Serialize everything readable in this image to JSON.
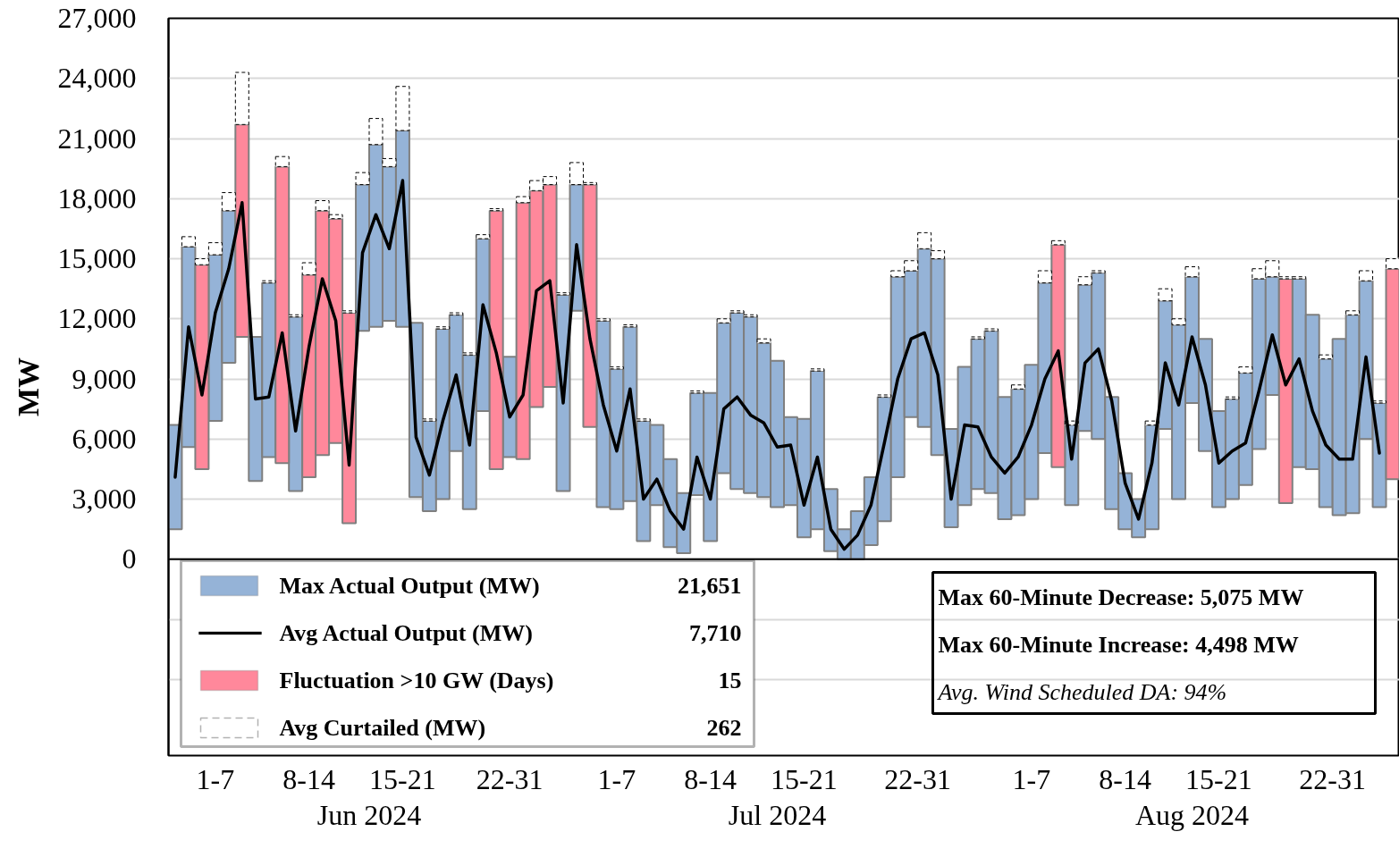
{
  "chart_data": {
    "type": "bar",
    "ylabel": "MW",
    "x": [
      "2024-06-01",
      "2024-06-02",
      "2024-06-03",
      "2024-06-04",
      "2024-06-05",
      "2024-06-06",
      "2024-06-07",
      "2024-06-08",
      "2024-06-09",
      "2024-06-10",
      "2024-06-11",
      "2024-06-12",
      "2024-06-13",
      "2024-06-14",
      "2024-06-15",
      "2024-06-16",
      "2024-06-17",
      "2024-06-18",
      "2024-06-19",
      "2024-06-20",
      "2024-06-21",
      "2024-06-22",
      "2024-06-23",
      "2024-06-24",
      "2024-06-25",
      "2024-06-26",
      "2024-06-27",
      "2024-06-28",
      "2024-06-29",
      "2024-06-30",
      "2024-07-01",
      "2024-07-02",
      "2024-07-03",
      "2024-07-04",
      "2024-07-05",
      "2024-07-06",
      "2024-07-07",
      "2024-07-08",
      "2024-07-09",
      "2024-07-10",
      "2024-07-11",
      "2024-07-12",
      "2024-07-13",
      "2024-07-14",
      "2024-07-15",
      "2024-07-16",
      "2024-07-17",
      "2024-07-18",
      "2024-07-19",
      "2024-07-20",
      "2024-07-21",
      "2024-07-22",
      "2024-07-23",
      "2024-07-24",
      "2024-07-25",
      "2024-07-26",
      "2024-07-27",
      "2024-07-28",
      "2024-07-29",
      "2024-07-30",
      "2024-07-31",
      "2024-08-01",
      "2024-08-02",
      "2024-08-03",
      "2024-08-04",
      "2024-08-05",
      "2024-08-06",
      "2024-08-07",
      "2024-08-08",
      "2024-08-09",
      "2024-08-10",
      "2024-08-11",
      "2024-08-12",
      "2024-08-13",
      "2024-08-14",
      "2024-08-15",
      "2024-08-16",
      "2024-08-17",
      "2024-08-18",
      "2024-08-19",
      "2024-08-20",
      "2024-08-21",
      "2024-08-22",
      "2024-08-23",
      "2024-08-24",
      "2024-08-25",
      "2024-08-26",
      "2024-08-27",
      "2024-08-28",
      "2024-08-29",
      "2024-08-30",
      "2024-08-31"
    ],
    "xlim": [
      "2024-05-31T12:00",
      "2024-08-31T12:00"
    ],
    "xticks": [
      {
        "value": "2024-06-04",
        "label": "1-7"
      },
      {
        "value": "2024-06-11",
        "label": "8-14"
      },
      {
        "value": "2024-06-18",
        "label": "15-21"
      },
      {
        "value": "2024-06-26",
        "label": "22-31"
      },
      {
        "value": "2024-07-04",
        "label": "1-7"
      },
      {
        "value": "2024-07-11",
        "label": "8-14"
      },
      {
        "value": "2024-07-18",
        "label": "15-21"
      },
      {
        "value": "2024-07-26T12:00",
        "label": "22-31"
      },
      {
        "value": "2024-08-04",
        "label": "1-7"
      },
      {
        "value": "2024-08-11",
        "label": "8-14"
      },
      {
        "value": "2024-08-18",
        "label": "15-21"
      },
      {
        "value": "2024-08-26T12:00",
        "label": "22-31"
      }
    ],
    "ylim": [
      -9800,
      27000
    ],
    "yticks": [
      {
        "value": -6000,
        "label": null
      },
      {
        "value": -3000,
        "label": null
      },
      0,
      {
        "value": 3000,
        "label": "3,000"
      },
      {
        "value": 6000,
        "label": "6,000"
      },
      {
        "value": 9000,
        "label": "9,000"
      },
      {
        "value": 12000,
        "label": "12,000"
      },
      {
        "value": 15000,
        "label": "15,000"
      },
      {
        "value": 18000,
        "label": "18,000"
      },
      {
        "value": 21000,
        "label": "21,000"
      },
      {
        "value": 24000,
        "label": "24,000"
      },
      {
        "value": 27000,
        "label": "27,000"
      }
    ],
    "grid": "y",
    "legend": "bottom left",
    "ref_lines": [
      {
        "axis": "y",
        "value": 0,
        "color": "#000000"
      }
    ],
    "series": [
      {
        "name": "Max Actual Output (MW)",
        "color": "#95b3d7",
        "base": [
          1500,
          5600,
          null,
          6900,
          9800,
          null,
          3900,
          5100,
          null,
          3400,
          null,
          null,
          null,
          null,
          11400,
          11600,
          11900,
          11600,
          3100,
          2400,
          3000,
          5400,
          2500,
          7400,
          null,
          5100,
          null,
          null,
          null,
          3400,
          12400,
          null,
          2600,
          2500,
          2900,
          900,
          2700,
          600,
          300,
          3200,
          900,
          4300,
          3500,
          3300,
          3100,
          2600,
          2700,
          1100,
          1500,
          400,
          0,
          0,
          700,
          1900,
          4100,
          7100,
          6600,
          5200,
          1600,
          2700,
          3500,
          3300,
          2000,
          2200,
          3000,
          5300,
          null,
          2700,
          6400,
          6000,
          2500,
          1500,
          1100,
          1500,
          6500,
          3000,
          7800,
          5400,
          2600,
          3000,
          3700,
          5500,
          8200,
          null,
          4600,
          4500,
          2600,
          2200,
          2300,
          6000,
          2600,
          null
        ],
        "values": [
          5200,
          10000,
          null,
          8300,
          7600,
          null,
          7200,
          8700,
          null,
          8700,
          null,
          null,
          null,
          null,
          7300,
          9100,
          7700,
          9800,
          8700,
          4500,
          8500,
          6800,
          7700,
          8600,
          null,
          5000,
          null,
          null,
          null,
          9800,
          6300,
          null,
          9300,
          7000,
          8700,
          6000,
          4000,
          4400,
          3000,
          5100,
          7400,
          7500,
          8800,
          8800,
          7700,
          7300,
          4400,
          5900,
          7900,
          3100,
          1500,
          2400,
          3400,
          6200,
          10000,
          7300,
          8900,
          9800,
          4900,
          6900,
          7500,
          8100,
          6100,
          6300,
          6700,
          8500,
          null,
          4000,
          7300,
          8300,
          5600,
          2800,
          1900,
          5200,
          6400,
          8700,
          6300,
          5600,
          4800,
          5000,
          5600,
          8500,
          5900,
          null,
          9400,
          7700,
          7400,
          8800,
          9900,
          7900,
          5200,
          null
        ]
      },
      {
        "name": "Avg Actual Output (MW)",
        "type": "line",
        "color": "#000000",
        "values": [
          4100,
          11600,
          8200,
          12300,
          14500,
          17800,
          8000,
          8100,
          11300,
          6400,
          10600,
          14000,
          11900,
          4700,
          15300,
          17200,
          15500,
          18900,
          6100,
          4200,
          6900,
          9200,
          5700,
          12700,
          10300,
          7100,
          8200,
          13400,
          13900,
          7800,
          15700,
          11000,
          7700,
          5400,
          8500,
          3000,
          4000,
          2400,
          1500,
          5100,
          3000,
          7500,
          8100,
          7200,
          6800,
          5600,
          5700,
          2700,
          5100,
          1500,
          500,
          1200,
          2700,
          5800,
          9000,
          11000,
          11300,
          9200,
          3000,
          6700,
          6600,
          5100,
          4300,
          5100,
          6700,
          9000,
          10400,
          5000,
          9800,
          10500,
          7900,
          3800,
          2000,
          4800,
          9800,
          7700,
          11100,
          8700,
          4800,
          5400,
          5800,
          8400,
          11200,
          8700,
          10000,
          7400,
          5700,
          5000,
          5000,
          10100,
          5300,
          null
        ]
      },
      {
        "name": "Fluctuation >10 GW (Days)",
        "color": "#ff889b",
        "base": [
          null,
          null,
          4500,
          null,
          null,
          11100,
          null,
          null,
          4800,
          null,
          4100,
          5200,
          5800,
          1800,
          null,
          null,
          null,
          null,
          null,
          null,
          null,
          null,
          null,
          null,
          4500,
          null,
          5000,
          7600,
          8600,
          null,
          null,
          6600,
          null,
          null,
          null,
          null,
          null,
          null,
          null,
          null,
          null,
          null,
          null,
          null,
          null,
          null,
          null,
          null,
          null,
          null,
          null,
          null,
          null,
          null,
          null,
          null,
          null,
          null,
          null,
          null,
          null,
          null,
          null,
          null,
          null,
          null,
          4600,
          null,
          null,
          null,
          null,
          null,
          null,
          null,
          null,
          null,
          null,
          null,
          null,
          null,
          null,
          null,
          null,
          2800,
          null,
          null,
          null,
          null,
          null,
          null,
          null,
          4000
        ],
        "values": [
          null,
          null,
          10200,
          null,
          null,
          10600,
          null,
          null,
          14800,
          null,
          10100,
          12200,
          11200,
          10500,
          null,
          null,
          null,
          null,
          null,
          null,
          null,
          null,
          null,
          null,
          12900,
          null,
          12800,
          10800,
          10100,
          null,
          null,
          12100,
          null,
          null,
          null,
          null,
          null,
          null,
          null,
          null,
          null,
          null,
          null,
          null,
          null,
          null,
          null,
          null,
          null,
          null,
          null,
          null,
          null,
          null,
          null,
          null,
          null,
          null,
          null,
          null,
          null,
          null,
          null,
          null,
          null,
          null,
          11100,
          null,
          null,
          null,
          null,
          null,
          null,
          null,
          null,
          null,
          null,
          null,
          null,
          null,
          null,
          null,
          null,
          11200,
          null,
          null,
          null,
          null,
          null,
          null,
          null,
          10500
        ]
      },
      {
        "name": "Avg Curtailed (MW)",
        "color": "#ffffff",
        "line_style": "dashed",
        "base": [
          null,
          15600,
          14700,
          15200,
          17400,
          21700,
          null,
          13800,
          19600,
          12100,
          14200,
          17400,
          17000,
          12300,
          18700,
          20700,
          19600,
          21400,
          null,
          6900,
          11500,
          12200,
          10200,
          16000,
          17400,
          null,
          17800,
          18400,
          18700,
          13200,
          18700,
          18700,
          11900,
          9500,
          11600,
          6900,
          null,
          null,
          null,
          8300,
          null,
          11800,
          12300,
          12100,
          10800,
          null,
          null,
          null,
          9400,
          null,
          null,
          null,
          null,
          8100,
          14100,
          14400,
          15500,
          15000,
          null,
          null,
          11000,
          11400,
          null,
          8500,
          null,
          13800,
          15700,
          6700,
          13700,
          14300,
          null,
          null,
          null,
          6700,
          12900,
          11700,
          14100,
          null,
          null,
          8000,
          9300,
          14000,
          14100,
          14000,
          14000,
          null,
          10000,
          null,
          12200,
          13900,
          7800,
          14500
        ],
        "values": [
          null,
          500,
          300,
          600,
          900,
          2600,
          null,
          100,
          500,
          100,
          600,
          500,
          200,
          100,
          600,
          1300,
          400,
          2200,
          null,
          100,
          100,
          100,
          100,
          200,
          100,
          null,
          300,
          500,
          400,
          100,
          1100,
          100,
          100,
          100,
          100,
          100,
          null,
          null,
          null,
          100,
          null,
          200,
          100,
          100,
          200,
          null,
          null,
          null,
          100,
          null,
          null,
          null,
          null,
          100,
          300,
          500,
          800,
          400,
          null,
          null,
          100,
          100,
          null,
          200,
          null,
          600,
          200,
          200,
          400,
          100,
          null,
          null,
          null,
          200,
          600,
          300,
          500,
          null,
          null,
          100,
          300,
          500,
          800,
          100,
          100,
          null,
          200,
          null,
          200,
          500,
          100,
          500
        ]
      }
    ],
    "annotations": [
      "21,651",
      "7,710",
      "15",
      "262",
      "Max 60-Minute Decrease: 5,075 MW",
      "Max 60-Minute Increase:  4,498 MW",
      "Avg. Wind Scheduled DA:   94%",
      "Jun 2024",
      "Jul 2024",
      "Aug 2024"
    ]
  }
}
